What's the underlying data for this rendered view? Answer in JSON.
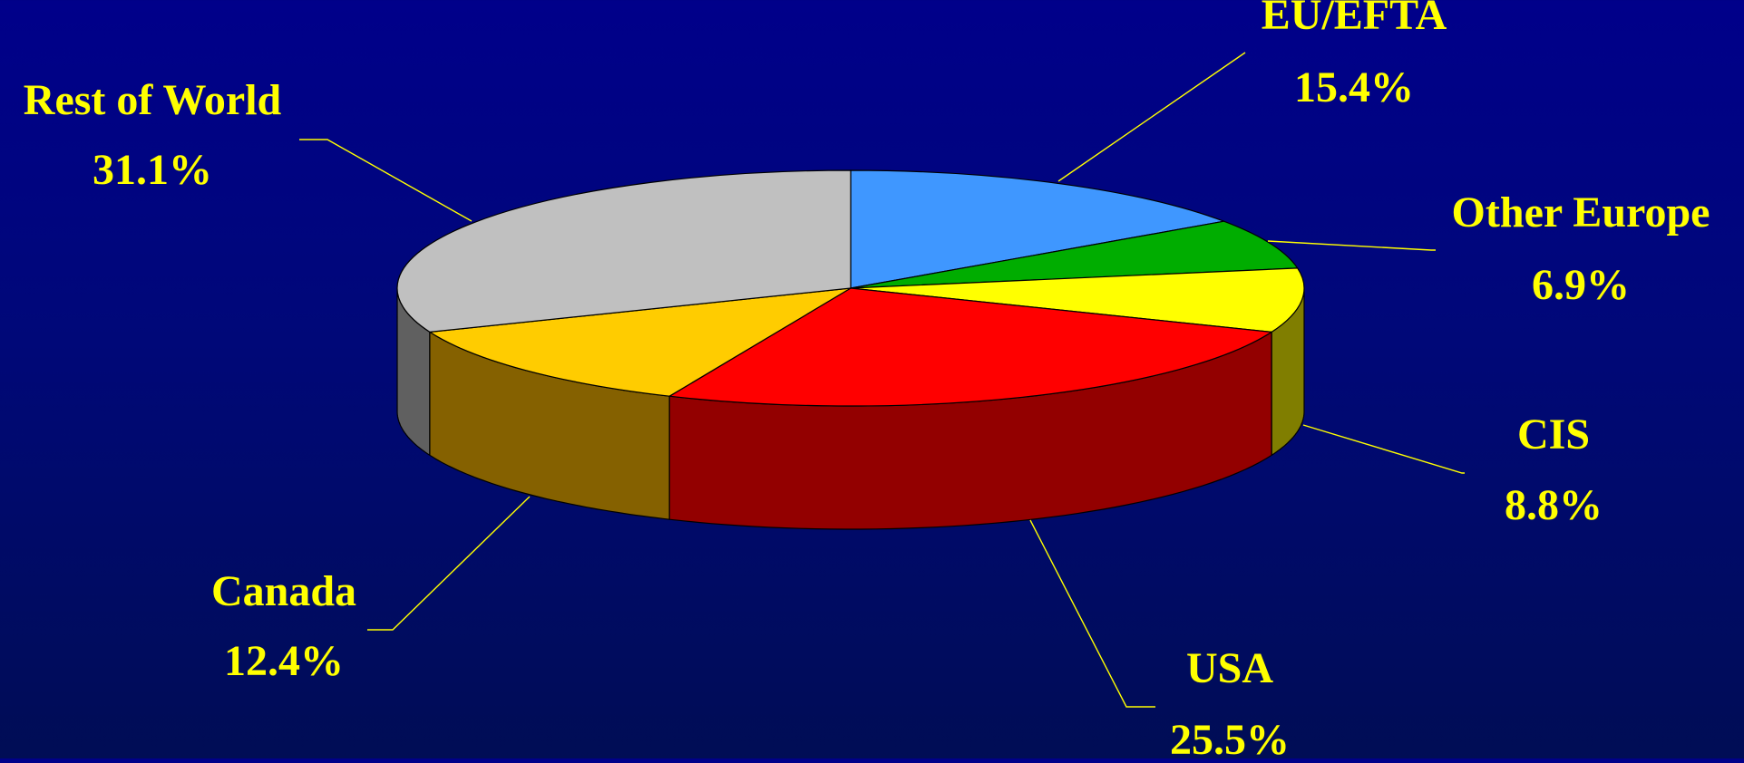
{
  "chart_data": {
    "type": "pie",
    "title": "",
    "start_angle_deg": -90,
    "label_color": "#ffff00",
    "leader_color": "#ffff00",
    "slices": [
      {
        "label": "EU/EFTA",
        "value": 15.4,
        "value_label": "15.4%",
        "color": "#3f97ff",
        "side_color": "#1f4f9f"
      },
      {
        "label": "Other Europe",
        "value": 6.9,
        "value_label": "6.9%",
        "color": "#00ad00",
        "side_color": "#006000"
      },
      {
        "label": "CIS",
        "value": 8.8,
        "value_label": "8.8%",
        "color": "#ffff00",
        "side_color": "#807e00"
      },
      {
        "label": "USA",
        "value": 25.5,
        "value_label": "25.5%",
        "color": "#ff0000",
        "side_color": "#930000"
      },
      {
        "label": "Canada",
        "value": 12.4,
        "value_label": "12.4%",
        "color": "#ffcc00",
        "side_color": "#856100"
      },
      {
        "label": "Rest of World",
        "value": 31.1,
        "value_label": "31.1%",
        "color": "#c0c0c0",
        "side_color": "#606060"
      }
    ]
  }
}
